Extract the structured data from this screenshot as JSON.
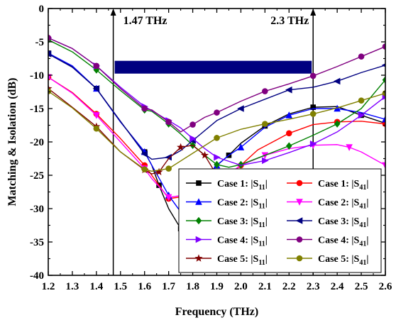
{
  "chart_data": {
    "type": "line",
    "xlabel": "Frequency (THz)",
    "ylabel": "Matching & Isolation (dB)",
    "xlim": [
      1.2,
      2.6
    ],
    "ylim": [
      -40,
      0
    ],
    "xticks": [
      1.2,
      1.3,
      1.4,
      1.5,
      1.6,
      1.7,
      1.8,
      1.9,
      2.0,
      2.1,
      2.2,
      2.3,
      2.4,
      2.5,
      2.6
    ],
    "yticks": [
      0,
      -5,
      -10,
      -15,
      -20,
      -25,
      -30,
      -35,
      -40
    ],
    "xtick_labels": [
      "1.2",
      "1.3",
      "1.4",
      "1.5",
      "1.6",
      "1.7",
      "1.8",
      "1.9",
      "2.0",
      "2.1",
      "2.2",
      "2.3",
      "2.4",
      "2.5",
      "2.6"
    ],
    "ytick_labels": [
      "0",
      "-5",
      "-10",
      "-15",
      "-20",
      "-25",
      "-30",
      "-35",
      "-40"
    ],
    "grid": false,
    "legend_position": "bottom-right",
    "annotations": [
      {
        "text": "1.47 THz",
        "x": 1.47
      },
      {
        "text": "2.3 THz",
        "x": 2.3
      }
    ],
    "band": {
      "x_start": 1.47,
      "x_end": 2.3,
      "y": -8.8,
      "color": "#000080"
    },
    "series": [
      {
        "legend_case": "Case 1: |S",
        "legend_sub": "11",
        "legend_end": "|",
        "color": "#000000",
        "marker": "square",
        "x": [
          1.2,
          1.3,
          1.4,
          1.5,
          1.6,
          1.63,
          1.66,
          1.7,
          1.75,
          1.8,
          1.85,
          1.9,
          1.95,
          2.0,
          2.1,
          2.2,
          2.3,
          2.4,
          2.5,
          2.6
        ],
        "y": [
          -6.7,
          -8.7,
          -12.0,
          -17.0,
          -21.5,
          -23.5,
          -26.5,
          -30.0,
          -33.0,
          -28.0,
          -25.5,
          -23.5,
          -22.0,
          -20.2,
          -17.6,
          -15.8,
          -14.8,
          -14.7,
          -16.0,
          -17.2
        ]
      },
      {
        "legend_case": "Case 1: |S",
        "legend_sub": "41",
        "legend_end": "|",
        "color": "#ff0000",
        "marker": "circle",
        "x": [
          1.2,
          1.3,
          1.4,
          1.5,
          1.6,
          1.63,
          1.7,
          1.8,
          1.9,
          1.95,
          2.0,
          2.07,
          2.2,
          2.3,
          2.4,
          2.5,
          2.6
        ],
        "y": [
          -10.3,
          -12.6,
          -15.8,
          -19.5,
          -23.5,
          -25.0,
          -28.5,
          -28.0,
          -26.5,
          -25.0,
          -23.5,
          -21.2,
          -18.7,
          -17.4,
          -17.0,
          -16.9,
          -17.3
        ]
      },
      {
        "legend_case": "Case 2: |S",
        "legend_sub": "11",
        "legend_end": "|",
        "color": "#0000ff",
        "marker": "triangle-up",
        "x": [
          1.2,
          1.3,
          1.4,
          1.5,
          1.6,
          1.63,
          1.7,
          1.75,
          1.8,
          1.85,
          1.9,
          1.95,
          2.0,
          2.1,
          2.2,
          2.3,
          2.4,
          2.5,
          2.6
        ],
        "y": [
          -6.7,
          -8.6,
          -12.0,
          -17.0,
          -21.5,
          -23.5,
          -28.0,
          -30.5,
          -28.0,
          -25.5,
          -23.5,
          -22.0,
          -20.8,
          -17.8,
          -16.0,
          -15.0,
          -15.0,
          -15.6,
          -16.6
        ]
      },
      {
        "legend_case": "Case 2: |S",
        "legend_sub": "41",
        "legend_end": "|",
        "color": "#ff00ff",
        "marker": "triangle-down",
        "x": [
          1.2,
          1.3,
          1.4,
          1.5,
          1.6,
          1.63,
          1.7,
          1.8,
          1.9,
          2.0,
          2.1,
          2.2,
          2.3,
          2.4,
          2.45,
          2.5,
          2.6
        ],
        "y": [
          -10.3,
          -12.7,
          -16.0,
          -20.0,
          -24.0,
          -25.5,
          -28.3,
          -27.8,
          -26.0,
          -23.5,
          -22.0,
          -21.0,
          -20.5,
          -20.4,
          -20.8,
          -21.5,
          -23.5
        ]
      },
      {
        "legend_case": "Case 3: |S",
        "legend_sub": "11",
        "legend_end": "|",
        "color": "#008000",
        "marker": "diamond",
        "x": [
          1.2,
          1.3,
          1.4,
          1.5,
          1.6,
          1.63,
          1.7,
          1.75,
          1.8,
          1.85,
          1.9,
          1.95,
          2.0,
          2.1,
          2.2,
          2.3,
          2.4,
          2.5,
          2.6
        ],
        "y": [
          -4.7,
          -6.5,
          -9.2,
          -12.3,
          -15.2,
          -15.4,
          -17.3,
          -18.8,
          -20.5,
          -22.0,
          -23.4,
          -23.8,
          -23.4,
          -22.0,
          -20.6,
          -19.0,
          -17.3,
          -15.0,
          -10.7
        ]
      },
      {
        "legend_case": "Case 3: |S",
        "legend_sub": "41",
        "legend_end": "|",
        "color": "#000080",
        "marker": "triangle-left",
        "x": [
          1.2,
          1.3,
          1.4,
          1.5,
          1.6,
          1.63,
          1.7,
          1.75,
          1.8,
          1.9,
          2.0,
          2.1,
          2.2,
          2.3,
          2.4,
          2.5,
          2.6
        ],
        "y": [
          -6.8,
          -8.8,
          -12.0,
          -16.9,
          -21.8,
          -22.6,
          -22.3,
          -21.3,
          -19.8,
          -16.8,
          -15.0,
          -13.6,
          -12.2,
          -11.8,
          -10.9,
          -9.6,
          -8.5
        ]
      },
      {
        "legend_case": "Case 4: |S",
        "legend_sub": "11",
        "legend_end": "|",
        "color": "#8000ff",
        "marker": "triangle-right",
        "x": [
          1.2,
          1.3,
          1.4,
          1.5,
          1.6,
          1.63,
          1.7,
          1.75,
          1.8,
          1.85,
          1.9,
          2.0,
          2.1,
          2.2,
          2.3,
          2.4,
          2.5,
          2.6
        ],
        "y": [
          -4.4,
          -6.0,
          -8.6,
          -11.8,
          -14.7,
          -15.3,
          -16.8,
          -17.9,
          -19.5,
          -21.0,
          -22.3,
          -23.5,
          -22.8,
          -21.6,
          -20.3,
          -18.5,
          -16.0,
          -13.2
        ]
      },
      {
        "legend_case": "Case 4: |S",
        "legend_sub": "41",
        "legend_end": "|",
        "color": "#800080",
        "marker": "circle",
        "x": [
          1.2,
          1.3,
          1.4,
          1.5,
          1.6,
          1.63,
          1.7,
          1.75,
          1.8,
          1.85,
          1.9,
          2.0,
          2.1,
          2.2,
          2.3,
          2.4,
          2.5,
          2.6
        ],
        "y": [
          -4.4,
          -6.0,
          -8.6,
          -12.0,
          -15.0,
          -15.2,
          -17.0,
          -18.5,
          -17.4,
          -16.3,
          -15.6,
          -13.9,
          -12.4,
          -11.3,
          -10.1,
          -8.7,
          -7.2,
          -5.7
        ]
      },
      {
        "legend_case": "Case 5: |S",
        "legend_sub": "11",
        "legend_end": "|",
        "color": "#800000",
        "marker": "star",
        "x": [
          1.2,
          1.3,
          1.4,
          1.5,
          1.6,
          1.63,
          1.66,
          1.7,
          1.75,
          1.8,
          1.85,
          1.9,
          1.95,
          2.0,
          2.05,
          2.1,
          2.15,
          2.2
        ],
        "y": [
          -12.0,
          -14.8,
          -17.7,
          -21.5,
          -24.2,
          -24.8,
          -24.5,
          -22.5,
          -20.8,
          -20.5,
          -22.0,
          -25.0,
          -28.0,
          -31.0,
          -33.5,
          -35.0,
          -33.5,
          -32.0
        ]
      },
      {
        "legend_case": "Case 5: |S",
        "legend_sub": "41",
        "legend_end": "|",
        "color": "#808000",
        "marker": "circle",
        "x": [
          1.2,
          1.3,
          1.4,
          1.5,
          1.6,
          1.63,
          1.7,
          1.8,
          1.9,
          2.0,
          2.1,
          2.2,
          2.3,
          2.4,
          2.5,
          2.6
        ],
        "y": [
          -12.4,
          -14.9,
          -18.0,
          -21.5,
          -24.1,
          -24.4,
          -24.0,
          -21.7,
          -19.4,
          -18.1,
          -17.3,
          -16.6,
          -15.8,
          -14.9,
          -13.8,
          -12.7
        ]
      }
    ]
  }
}
